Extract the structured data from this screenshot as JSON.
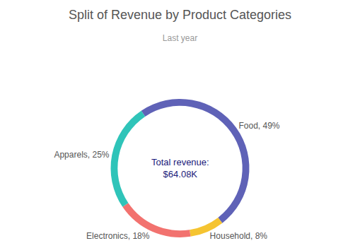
{
  "chart_data": {
    "type": "donut",
    "title": "Split of Revenue by Product Categories",
    "subtitle": "Last year",
    "categories": [
      "Food",
      "Household",
      "Electronics",
      "Apparels"
    ],
    "values": [
      49,
      8,
      18,
      25
    ],
    "value_labels": [
      "Food, 49%",
      "Household, 8%",
      "Electronics, 18%",
      "Apparels, 25%"
    ],
    "colors": [
      "#5f62b7",
      "#f5c431",
      "#f2726f",
      "#2fc4b9"
    ],
    "data_labels": true,
    "annotations": [
      "Total revenue:",
      "$64.08K"
    ]
  }
}
